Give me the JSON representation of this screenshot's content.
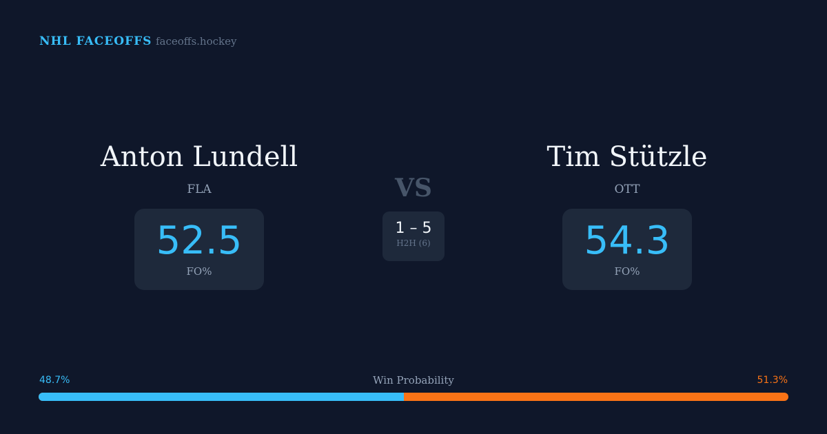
{
  "header": {
    "brand": "NHL FACEOFFS",
    "site": "faceoffs.hockey"
  },
  "players": [
    {
      "name": "Anton Lundell",
      "team": "FLA",
      "fo_pct": "52.5",
      "fo_label": "FO%"
    },
    {
      "name": "Tim Stützle",
      "team": "OTT",
      "fo_pct": "54.3",
      "fo_label": "FO%"
    }
  ],
  "vs": "VS",
  "h2h": {
    "score": "1 – 5",
    "label": "H2H (6)"
  },
  "win_probability": {
    "label": "Win Probability",
    "left": "48.7%",
    "right": "51.3%",
    "left_value": 48.7,
    "left_color": "#38bdf8",
    "right_color": "#f97316"
  }
}
